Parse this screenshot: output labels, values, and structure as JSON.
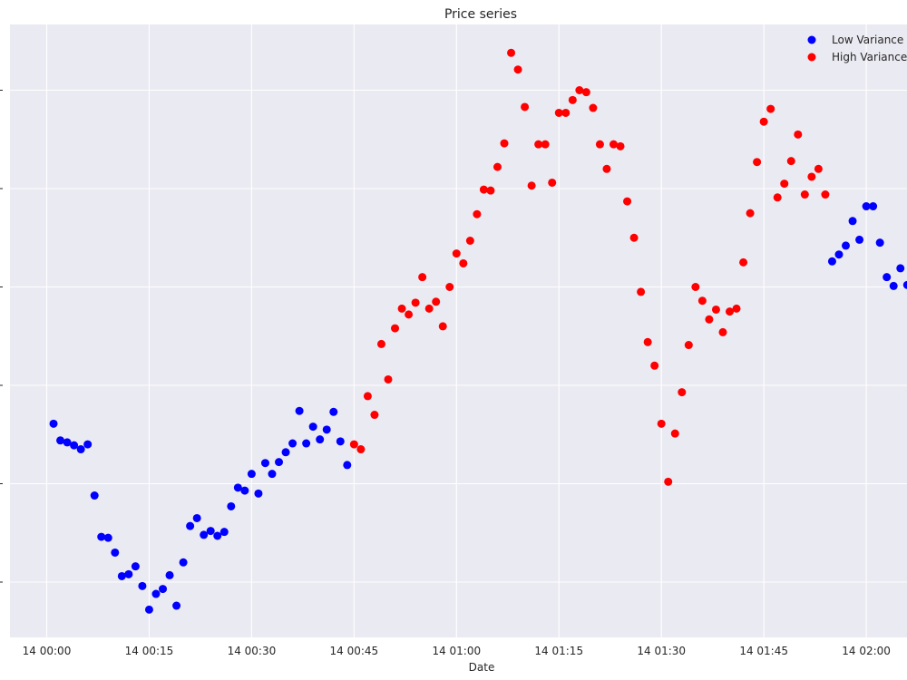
{
  "chart_data": {
    "type": "scatter",
    "title": "Price series",
    "xlabel": "Date",
    "ylabel": "",
    "x_unit": "time (HH:MM)",
    "x_ticks": [
      {
        "label": "14 00:00",
        "value": "00:00"
      },
      {
        "label": "14 00:15",
        "value": "00:15"
      },
      {
        "label": "14 00:30",
        "value": "00:30"
      },
      {
        "label": "14 00:45",
        "value": "00:45"
      },
      {
        "label": "14 01:00",
        "value": "01:00"
      },
      {
        "label": "14 01:15",
        "value": "01:15"
      },
      {
        "label": "14 01:30",
        "value": "01:30"
      },
      {
        "label": "14 01:45",
        "value": "01:45"
      },
      {
        "label": "14 02:00",
        "value": "02:00"
      }
    ],
    "y_range": [
      -0.55,
      5.7
    ],
    "y_gridlines": [
      0,
      1,
      2,
      3,
      4,
      5
    ],
    "grid": true,
    "background_color": "#eaeaf2",
    "legend_position": "top-right",
    "series": [
      {
        "name": "Low Variance R",
        "color": "#0000ff",
        "points": [
          [
            "00:01",
            1.61
          ],
          [
            "00:02",
            1.44
          ],
          [
            "00:03",
            1.42
          ],
          [
            "00:04",
            1.39
          ],
          [
            "00:05",
            1.35
          ],
          [
            "00:06",
            1.4
          ],
          [
            "00:07",
            0.88
          ],
          [
            "00:08",
            0.46
          ],
          [
            "00:09",
            0.45
          ],
          [
            "00:10",
            0.3
          ],
          [
            "00:11",
            0.06
          ],
          [
            "00:12",
            0.08
          ],
          [
            "00:13",
            0.16
          ],
          [
            "00:14",
            -0.04
          ],
          [
            "00:15",
            -0.28
          ],
          [
            "00:16",
            -0.12
          ],
          [
            "00:17",
            -0.07
          ],
          [
            "00:18",
            0.07
          ],
          [
            "00:19",
            -0.24
          ],
          [
            "00:20",
            0.2
          ],
          [
            "00:21",
            0.57
          ],
          [
            "00:22",
            0.65
          ],
          [
            "00:23",
            0.48
          ],
          [
            "00:24",
            0.52
          ],
          [
            "00:25",
            0.47
          ],
          [
            "00:26",
            0.51
          ],
          [
            "00:27",
            0.77
          ],
          [
            "00:28",
            0.96
          ],
          [
            "00:29",
            0.93
          ],
          [
            "00:30",
            1.1
          ],
          [
            "00:31",
            0.9
          ],
          [
            "00:32",
            1.21
          ],
          [
            "00:33",
            1.1
          ],
          [
            "00:34",
            1.22
          ],
          [
            "00:35",
            1.32
          ],
          [
            "00:36",
            1.41
          ],
          [
            "00:37",
            1.74
          ],
          [
            "00:38",
            1.41
          ],
          [
            "00:39",
            1.58
          ],
          [
            "00:40",
            1.45
          ],
          [
            "00:41",
            1.55
          ],
          [
            "00:42",
            1.73
          ],
          [
            "00:43",
            1.43
          ],
          [
            "00:44",
            1.19
          ],
          [
            "01:55",
            3.26
          ],
          [
            "01:56",
            3.33
          ],
          [
            "01:57",
            3.42
          ],
          [
            "01:58",
            3.67
          ],
          [
            "01:59",
            3.48
          ],
          [
            "02:00",
            3.82
          ],
          [
            "02:01",
            3.82
          ],
          [
            "02:02",
            3.45
          ],
          [
            "02:03",
            3.1
          ],
          [
            "02:04",
            3.01
          ],
          [
            "02:05",
            3.19
          ],
          [
            "02:06",
            3.02
          ],
          [
            "02:07",
            3.25
          ]
        ]
      },
      {
        "name": "High Variance R",
        "color": "#ff0000",
        "points": [
          [
            "00:45",
            1.4
          ],
          [
            "00:46",
            1.35
          ],
          [
            "00:47",
            1.89
          ],
          [
            "00:48",
            1.7
          ],
          [
            "00:49",
            2.42
          ],
          [
            "00:50",
            2.06
          ],
          [
            "00:51",
            2.58
          ],
          [
            "00:52",
            2.78
          ],
          [
            "00:53",
            2.72
          ],
          [
            "00:54",
            2.84
          ],
          [
            "00:55",
            3.1
          ],
          [
            "00:56",
            2.78
          ],
          [
            "00:57",
            2.85
          ],
          [
            "00:58",
            2.6
          ],
          [
            "00:59",
            3.0
          ],
          [
            "01:00",
            3.34
          ],
          [
            "01:01",
            3.24
          ],
          [
            "01:02",
            3.47
          ],
          [
            "01:03",
            3.74
          ],
          [
            "01:04",
            3.99
          ],
          [
            "01:05",
            3.98
          ],
          [
            "01:06",
            4.22
          ],
          [
            "01:07",
            4.46
          ],
          [
            "01:08",
            5.38
          ],
          [
            "01:09",
            5.21
          ],
          [
            "01:10",
            4.83
          ],
          [
            "01:11",
            4.03
          ],
          [
            "01:12",
            4.45
          ],
          [
            "01:13",
            4.45
          ],
          [
            "01:14",
            4.06
          ],
          [
            "01:15",
            4.77
          ],
          [
            "01:16",
            4.77
          ],
          [
            "01:17",
            4.9
          ],
          [
            "01:18",
            5.0
          ],
          [
            "01:19",
            4.98
          ],
          [
            "01:20",
            4.82
          ],
          [
            "01:21",
            4.45
          ],
          [
            "01:22",
            4.2
          ],
          [
            "01:23",
            4.45
          ],
          [
            "01:24",
            4.43
          ],
          [
            "01:25",
            3.87
          ],
          [
            "01:26",
            3.5
          ],
          [
            "01:27",
            2.95
          ],
          [
            "01:28",
            2.44
          ],
          [
            "01:29",
            2.2
          ],
          [
            "01:30",
            1.61
          ],
          [
            "01:31",
            1.02
          ],
          [
            "01:32",
            1.51
          ],
          [
            "01:33",
            1.93
          ],
          [
            "01:34",
            2.41
          ],
          [
            "01:35",
            3.0
          ],
          [
            "01:36",
            2.86
          ],
          [
            "01:37",
            2.67
          ],
          [
            "01:38",
            2.77
          ],
          [
            "01:39",
            2.54
          ],
          [
            "01:40",
            2.75
          ],
          [
            "01:41",
            2.78
          ],
          [
            "01:42",
            3.25
          ],
          [
            "01:43",
            3.75
          ],
          [
            "01:44",
            4.27
          ],
          [
            "01:45",
            4.68
          ],
          [
            "01:46",
            4.81
          ],
          [
            "01:47",
            3.91
          ],
          [
            "01:48",
            4.05
          ],
          [
            "01:49",
            4.28
          ],
          [
            "01:50",
            4.55
          ],
          [
            "01:51",
            3.94
          ],
          [
            "01:52",
            4.12
          ],
          [
            "01:53",
            4.2
          ],
          [
            "01:54",
            3.94
          ]
        ]
      }
    ]
  }
}
